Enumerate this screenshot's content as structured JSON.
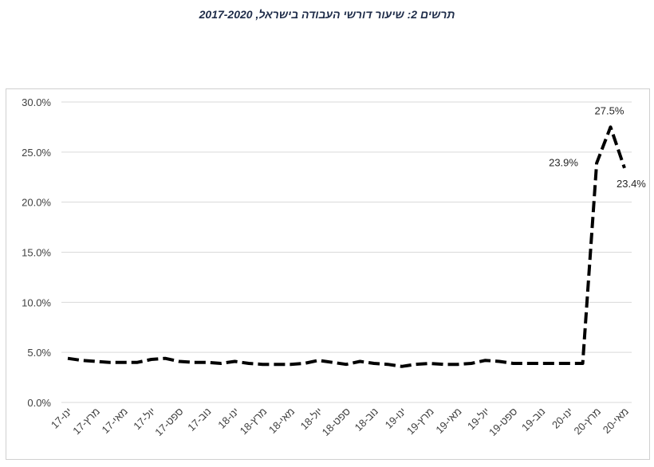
{
  "title": "תרשים 2: שיעור דורשי העבודה בישראל, 2017-2020",
  "chart_data": {
    "type": "line",
    "title": "תרשים 2: שיעור דורשי העבודה בישראל, 2017-2020",
    "xlabel": "",
    "ylabel": "",
    "ylim": [
      0,
      30
    ],
    "yticks": [
      "0.0%",
      "5.0%",
      "10.0%",
      "15.0%",
      "20.0%",
      "25.0%",
      "30.0%"
    ],
    "ytick_values": [
      0,
      5,
      10,
      15,
      20,
      25,
      30
    ],
    "grid": true,
    "legend": "none",
    "line_style": "dashed",
    "line_color": "#000000",
    "x_tick_labels": [
      "ינו-17",
      "מרץ-17",
      "מאי-17",
      "יול-17",
      "ספט-17",
      "נוב-17",
      "ינו-18",
      "מרץ-18",
      "מאי-18",
      "יול-18",
      "ספט-18",
      "נוב-18",
      "ינו-19",
      "מרץ-19",
      "מאי-19",
      "יול-19",
      "ספט-19",
      "נוב-19",
      "ינו-20",
      "מרץ-20",
      "מאי-20"
    ],
    "x": [
      "ינו-17",
      "פבר-17",
      "מרץ-17",
      "אפר-17",
      "מאי-17",
      "יונ-17",
      "יול-17",
      "אוג-17",
      "ספט-17",
      "אוק-17",
      "נוב-17",
      "דצמ-17",
      "ינו-18",
      "פבר-18",
      "מרץ-18",
      "אפר-18",
      "מאי-18",
      "יונ-18",
      "יול-18",
      "אוג-18",
      "ספט-18",
      "אוק-18",
      "נוב-18",
      "דצמ-18",
      "ינו-19",
      "פבר-19",
      "מרץ-19",
      "אפר-19",
      "מאי-19",
      "יונ-19",
      "יול-19",
      "אוג-19",
      "ספט-19",
      "אוק-19",
      "נוב-19",
      "דצמ-19",
      "ינו-20",
      "פבר-20",
      "מרץ-20",
      "אפר-20",
      "מאי-20"
    ],
    "series": [
      {
        "name": "שיעור דורשי העבודה",
        "values": [
          4.4,
          4.2,
          4.1,
          4.0,
          4.0,
          4.0,
          4.3,
          4.4,
          4.1,
          4.0,
          4.0,
          3.9,
          4.1,
          3.9,
          3.8,
          3.8,
          3.8,
          3.9,
          4.2,
          4.0,
          3.8,
          4.1,
          3.9,
          3.8,
          3.6,
          3.8,
          3.9,
          3.8,
          3.8,
          3.9,
          4.2,
          4.1,
          3.9,
          3.9,
          3.9,
          3.9,
          3.9,
          3.9,
          23.9,
          27.5,
          23.4
        ]
      }
    ],
    "annotations": [
      {
        "index": 38,
        "text": "23.9%"
      },
      {
        "index": 39,
        "text": "27.5%"
      },
      {
        "index": 40,
        "text": "23.4%"
      }
    ]
  }
}
